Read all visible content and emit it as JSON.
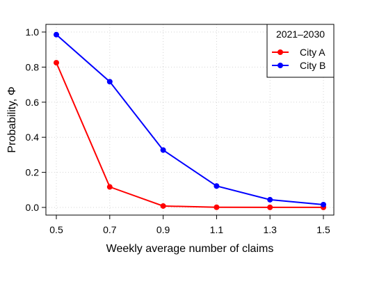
{
  "chart_data": {
    "type": "line",
    "xlabel": "Weekly average number of claims",
    "ylabel": "Probability, Φ",
    "x": [
      0.5,
      0.7,
      0.9,
      1.1,
      1.3,
      1.5
    ],
    "xticks": [
      "0.5",
      "0.7",
      "0.9",
      "1.1",
      "1.3",
      "1.5"
    ],
    "yticks": [
      "0.0",
      "0.2",
      "0.4",
      "0.6",
      "0.8",
      "1.0"
    ],
    "xlim": [
      0.5,
      1.5
    ],
    "ylim": [
      0.0,
      1.0
    ],
    "grid": true,
    "legend": {
      "title": "2021–2030",
      "placement": "top-right"
    },
    "series": [
      {
        "name": "City A",
        "color": "#ff0000",
        "values": [
          0.825,
          0.117,
          0.008,
          0.001,
          0.0005,
          0.0005
        ]
      },
      {
        "name": "City B",
        "color": "#0000ff",
        "values": [
          0.985,
          0.717,
          0.327,
          0.122,
          0.044,
          0.016
        ]
      }
    ]
  }
}
